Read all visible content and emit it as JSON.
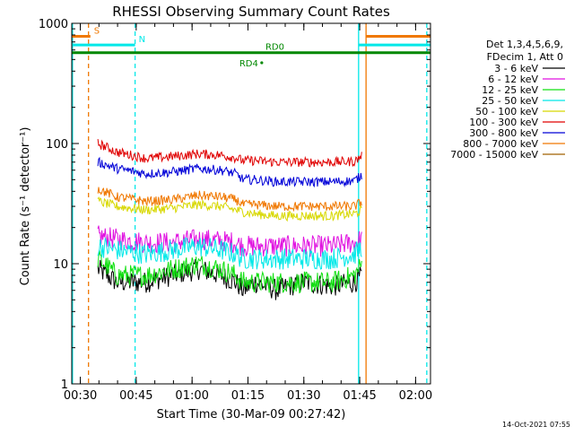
{
  "chart_data": {
    "type": "line",
    "title": "RHESSI Observing Summary Count Rates",
    "xlabel": "Start Time (30-Mar-09 00:27:42)",
    "ylabel": "Count Rate (s⁻¹ detector⁻¹)",
    "x_unit": "minutes after 00:27:42",
    "xlim": [
      0,
      96.3
    ],
    "ylim": [
      1,
      1000
    ],
    "y_scale": "log",
    "grid": false,
    "legend_position": "top-right",
    "footer": "14-Oct-2021 07:55",
    "x_ticks": [
      {
        "label": "00:30",
        "x": 2.3
      },
      {
        "label": "00:45",
        "x": 17.3
      },
      {
        "label": "01:00",
        "x": 32.3
      },
      {
        "label": "01:15",
        "x": 47.3
      },
      {
        "label": "01:30",
        "x": 62.3
      },
      {
        "label": "01:45",
        "x": 77.3
      },
      {
        "label": "02:00",
        "x": 92.3
      }
    ],
    "y_ticks": [
      {
        "label": "1",
        "value": 1
      },
      {
        "label": "10",
        "value": 10
      },
      {
        "label": "100",
        "value": 100
      },
      {
        "label": "1000",
        "value": 1000
      }
    ],
    "legend_header": [
      "Det 1,3,4,5,6,9,",
      "FDecim 1, Att 0"
    ],
    "series": [
      {
        "name": "3 - 6 keV",
        "color": "#000000",
        "points": [
          [
            7,
            9
          ],
          [
            12,
            7
          ],
          [
            20,
            7
          ],
          [
            27,
            8
          ],
          [
            34,
            9
          ],
          [
            40,
            8
          ],
          [
            44,
            7
          ],
          [
            46,
            6
          ],
          [
            49,
            7
          ],
          [
            55,
            6
          ],
          [
            62,
            7
          ],
          [
            70,
            6.5
          ],
          [
            76,
            7
          ],
          [
            78,
            8
          ]
        ]
      },
      {
        "name": "6 - 12 keV",
        "color": "#e010e0",
        "points": [
          [
            7,
            17
          ],
          [
            12,
            16
          ],
          [
            20,
            15
          ],
          [
            27,
            15
          ],
          [
            34,
            16
          ],
          [
            40,
            15.5
          ],
          [
            44,
            15
          ],
          [
            46,
            14
          ],
          [
            49,
            14
          ],
          [
            55,
            14
          ],
          [
            62,
            14
          ],
          [
            70,
            14
          ],
          [
            76,
            15
          ],
          [
            78,
            16
          ]
        ]
      },
      {
        "name": "12 - 25 keV",
        "color": "#10e010",
        "points": [
          [
            7,
            11
          ],
          [
            12,
            8
          ],
          [
            20,
            8
          ],
          [
            27,
            9
          ],
          [
            34,
            10
          ],
          [
            40,
            9
          ],
          [
            44,
            8
          ],
          [
            46,
            7
          ],
          [
            49,
            7
          ],
          [
            55,
            7
          ],
          [
            62,
            7
          ],
          [
            70,
            7
          ],
          [
            76,
            8
          ],
          [
            78,
            10
          ]
        ]
      },
      {
        "name": "25 - 50 keV",
        "color": "#00e8e8",
        "points": [
          [
            7,
            14
          ],
          [
            12,
            13
          ],
          [
            20,
            12
          ],
          [
            27,
            13
          ],
          [
            34,
            14
          ],
          [
            40,
            13
          ],
          [
            44,
            12
          ],
          [
            46,
            11
          ],
          [
            49,
            11
          ],
          [
            55,
            11
          ],
          [
            62,
            11
          ],
          [
            70,
            11
          ],
          [
            76,
            12
          ],
          [
            78,
            14
          ]
        ]
      },
      {
        "name": "50 - 100 keV",
        "color": "#d8d800",
        "points": [
          [
            7,
            33
          ],
          [
            12,
            30
          ],
          [
            20,
            28
          ],
          [
            27,
            29
          ],
          [
            34,
            31
          ],
          [
            40,
            30
          ],
          [
            44,
            28
          ],
          [
            46,
            27
          ],
          [
            49,
            26
          ],
          [
            55,
            25
          ],
          [
            62,
            25
          ],
          [
            70,
            25
          ],
          [
            76,
            26
          ],
          [
            78,
            28
          ]
        ]
      },
      {
        "name": "100 - 300 keV",
        "color": "#e00000",
        "points": [
          [
            7,
            100
          ],
          [
            12,
            85
          ],
          [
            20,
            75
          ],
          [
            27,
            78
          ],
          [
            34,
            82
          ],
          [
            40,
            80
          ],
          [
            44,
            76
          ],
          [
            46,
            72
          ],
          [
            49,
            72
          ],
          [
            55,
            70
          ],
          [
            62,
            70
          ],
          [
            70,
            70
          ],
          [
            76,
            71
          ],
          [
            78,
            80
          ]
        ]
      },
      {
        "name": "300 - 800 keV",
        "color": "#0000d8",
        "points": [
          [
            7,
            70
          ],
          [
            12,
            62
          ],
          [
            20,
            56
          ],
          [
            27,
            58
          ],
          [
            34,
            62
          ],
          [
            40,
            60
          ],
          [
            44,
            56
          ],
          [
            46,
            50
          ],
          [
            49,
            50
          ],
          [
            55,
            48
          ],
          [
            62,
            48
          ],
          [
            70,
            48
          ],
          [
            76,
            49
          ],
          [
            78,
            55
          ]
        ]
      },
      {
        "name": "800 - 7000 keV",
        "color": "#f07800",
        "points": [
          [
            7,
            42
          ],
          [
            12,
            36
          ],
          [
            20,
            33
          ],
          [
            27,
            34
          ],
          [
            34,
            37
          ],
          [
            40,
            36
          ],
          [
            44,
            34
          ],
          [
            46,
            31
          ],
          [
            49,
            31
          ],
          [
            55,
            30
          ],
          [
            62,
            30
          ],
          [
            70,
            30
          ],
          [
            76,
            30
          ],
          [
            78,
            33
          ]
        ]
      },
      {
        "name": "7000 - 15000 keV",
        "color": "#a06000",
        "points": []
      }
    ],
    "flags": [
      {
        "label": "S",
        "color": "#f07800",
        "value": 780,
        "x_from": 0,
        "x_to": 5,
        "x_from2": 79,
        "x_to2": 96.3
      },
      {
        "label": "N",
        "color": "#00e8e8",
        "value": 660,
        "x_from": 0,
        "x_to": 17,
        "x_from2": 77,
        "x_to2": 96.3
      },
      {
        "label": "RD0",
        "color": "#008800",
        "value": 570,
        "x_from": 0,
        "x_to": 96.3
      }
    ],
    "markers": [
      {
        "label": "RD4",
        "color": "#008800",
        "x": 51,
        "y": 470
      }
    ],
    "vlines": [
      {
        "x": 0.2,
        "color": "#00e8e8",
        "dash": false
      },
      {
        "x": 4.5,
        "color": "#f07800",
        "dash": true
      },
      {
        "x": 17,
        "color": "#00e8e8",
        "dash": true
      },
      {
        "x": 77,
        "color": "#00e8e8",
        "dash": false
      },
      {
        "x": 79,
        "color": "#f07800",
        "dash": false
      },
      {
        "x": 95.3,
        "color": "#00e8e8",
        "dash": true
      }
    ]
  }
}
